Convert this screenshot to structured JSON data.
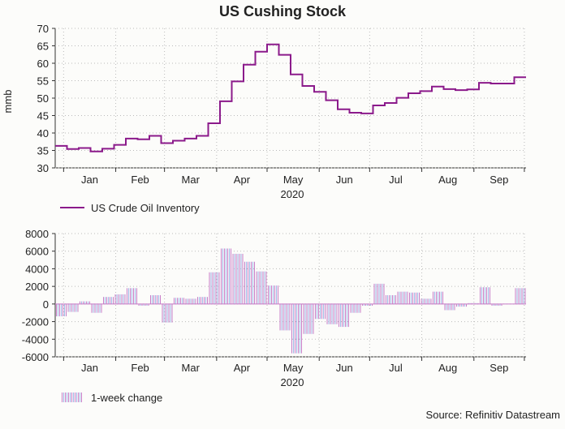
{
  "chart_data": [
    {
      "type": "line",
      "title": "US Cushing Stock",
      "ylabel": "mmb",
      "xlabel": "2020",
      "ylim": [
        30,
        70
      ],
      "yticks": [
        30,
        35,
        40,
        45,
        50,
        55,
        60,
        65,
        70
      ],
      "xtick_labels": [
        "Jan",
        "Feb",
        "Mar",
        "Apr",
        "May",
        "Jun",
        "Jul",
        "Aug",
        "Sep"
      ],
      "grid": true,
      "legend_position": "bottom-left",
      "series": [
        {
          "name": "US Crude Oil Inventory",
          "color": "#8b1a8b",
          "x_start": "2019-12-27",
          "x_step_days": 7,
          "values": [
            36.3,
            35.4,
            35.7,
            34.7,
            35.5,
            36.6,
            38.4,
            38.2,
            39.2,
            37.1,
            37.8,
            38.4,
            39.2,
            42.8,
            49.1,
            54.8,
            59.6,
            63.3,
            65.4,
            62.4,
            56.8,
            53.5,
            51.8,
            49.4,
            46.8,
            45.8,
            45.6,
            47.9,
            48.6,
            50.1,
            51.4,
            52.0,
            53.3,
            52.6,
            52.3,
            52.5,
            54.4,
            54.2,
            54.2,
            56.0
          ]
        }
      ]
    },
    {
      "type": "bar",
      "ylim": [
        -6000,
        8000
      ],
      "yticks": [
        -6000,
        -4000,
        -2000,
        0,
        2000,
        4000,
        6000,
        8000
      ],
      "xlabel": "2020",
      "xtick_labels": [
        "Jan",
        "Feb",
        "Mar",
        "Apr",
        "May",
        "Jun",
        "Jul",
        "Aug",
        "Sep"
      ],
      "grid": true,
      "legend_position": "bottom-left",
      "series": [
        {
          "name": "1-week change",
          "colors": [
            "#c77dc7",
            "#9fb6e6"
          ],
          "x_start": "2019-12-27",
          "x_step_days": 7,
          "values": [
            -1400,
            -900,
            300,
            -1000,
            800,
            1100,
            1800,
            -200,
            1000,
            -2100,
            700,
            600,
            800,
            3600,
            6300,
            5700,
            4800,
            3700,
            2100,
            -3000,
            -5600,
            -3400,
            -1700,
            -2300,
            -2600,
            -1000,
            -200,
            2300,
            1000,
            1400,
            1300,
            600,
            1400,
            -700,
            -300,
            100,
            1900,
            -200,
            0,
            1800
          ]
        }
      ]
    }
  ],
  "source": "Source: Refinitiv Datastream"
}
